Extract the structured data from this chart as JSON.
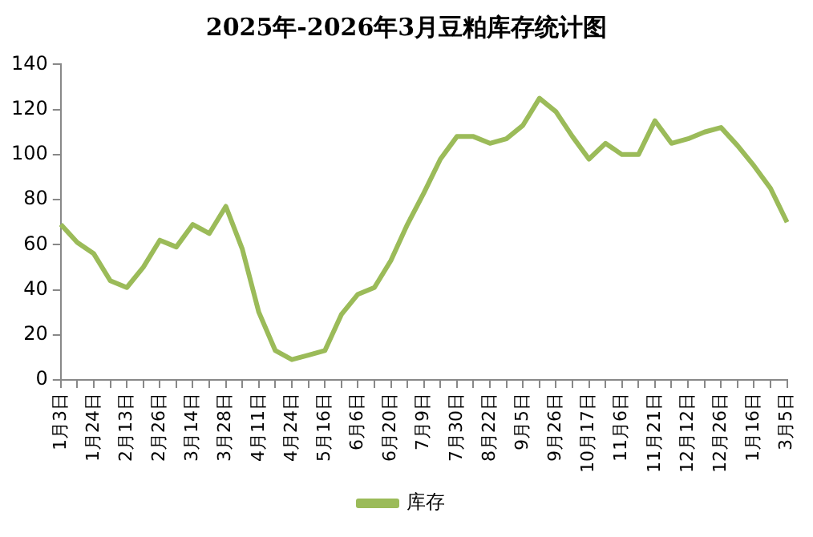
{
  "chart_data": {
    "type": "line",
    "title": "2025年-2026年3月豆粕库存统计图",
    "categories": [
      "1月3日",
      null,
      "1月24日",
      null,
      "2月13日",
      null,
      "2月26日",
      null,
      "3月14日",
      null,
      "3月28日",
      null,
      "4月11日",
      null,
      "4月24日",
      null,
      "5月16日",
      null,
      "6月6日",
      null,
      "6月20日",
      null,
      "7月9日",
      null,
      "7月30日",
      null,
      "8月22日",
      null,
      "9月5日",
      null,
      "9月26日",
      null,
      "10月17日",
      null,
      "11月6日",
      null,
      "11月21日",
      null,
      "12月12日",
      null,
      "12月26日",
      null,
      "1月16日",
      null,
      "3月5日"
    ],
    "series": [
      {
        "name": "库存",
        "color": "#9bbb59",
        "values": [
          69,
          61,
          56,
          44,
          41,
          50,
          62,
          59,
          69,
          65,
          77,
          58,
          30,
          13,
          9,
          11,
          13,
          29,
          38,
          41,
          53,
          69,
          83,
          98,
          108,
          108,
          105,
          107,
          113,
          125,
          119,
          108,
          98,
          105,
          100,
          100,
          115,
          105,
          107,
          110,
          112,
          104,
          95,
          85,
          70
        ]
      }
    ],
    "ylim": [
      0,
      140
    ],
    "yticks": [
      0,
      20,
      40,
      60,
      80,
      100,
      120,
      140
    ],
    "grid": false,
    "legend": "bottom",
    "marker": "none",
    "line_style": "solid"
  }
}
